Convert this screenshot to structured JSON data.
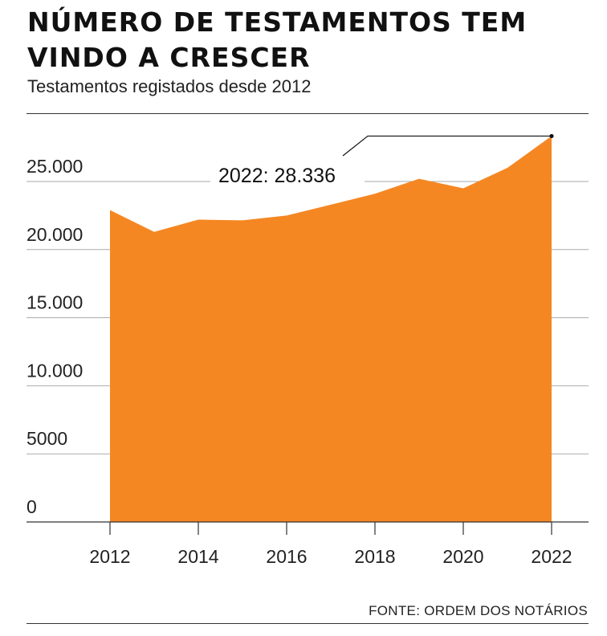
{
  "header": {
    "title": "NÚMERO DE TESTAMENTOS TEM VINDO A CRESCER",
    "subtitle": "Testamentos registados desde 2012"
  },
  "footer": {
    "source": "FONTE: ORDEM DOS NOTÁRIOS"
  },
  "colors": {
    "area": "#F58723",
    "grid": "#aaaaaa",
    "axis": "#333333"
  },
  "chart_data": {
    "type": "area",
    "x": [
      2012,
      2013,
      2014,
      2015,
      2016,
      2017,
      2018,
      2019,
      2020,
      2021,
      2022
    ],
    "series": [
      {
        "values": [
          22900,
          21300,
          22200,
          22150,
          22500,
          23300,
          24100,
          25200,
          24500,
          26000,
          28336
        ]
      }
    ],
    "xticks": [
      2012,
      2014,
      2016,
      2018,
      2020,
      2022
    ],
    "xtick_labels": [
      "2012",
      "2014",
      "2016",
      "2018",
      "2020",
      "2022"
    ],
    "yticks": [
      0,
      5000,
      10000,
      15000,
      20000,
      25000
    ],
    "ytick_labels": [
      "0",
      "5000",
      "10.000",
      "15.000",
      "20.000",
      "25.000"
    ],
    "ylim": [
      0,
      30000
    ],
    "xlim": [
      2012,
      2022
    ],
    "grid": true,
    "annotation": {
      "x": 2022,
      "y": 28336,
      "text": "2022: 28.336"
    },
    "title": "NÚMERO DE TESTAMENTOS TEM VINDO A CRESCER",
    "subtitle": "Testamentos registados desde 2012",
    "xlabel": "",
    "ylabel": ""
  }
}
